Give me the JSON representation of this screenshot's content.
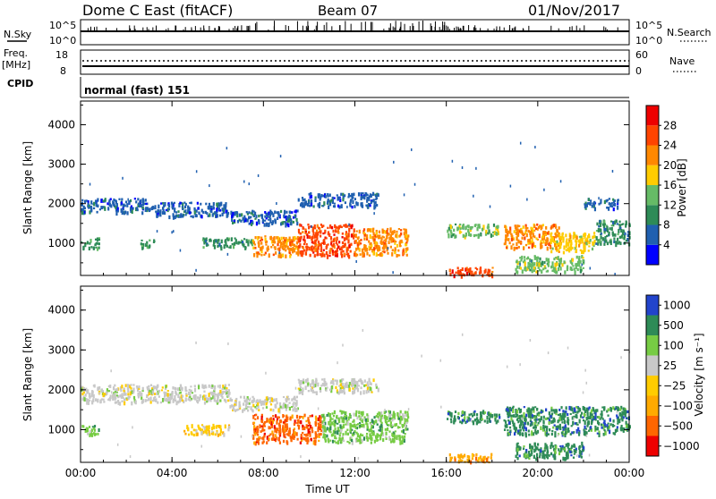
{
  "header": {
    "title": "Dome C East (fitACF)",
    "beam": "Beam 07",
    "date": "01/Nov/2017"
  },
  "top_panels": {
    "nsky_label": "N.Sky",
    "nsky_ticks": [
      "10^5",
      "10^0"
    ],
    "nsearch_label": "N.Search",
    "nsearch_ticks": [
      "10^5",
      "10^0"
    ],
    "freq_label": "Freq.",
    "freq_unit": "[MHz]",
    "freq_ticks": [
      "18",
      "8"
    ],
    "nave_label": "Nave",
    "nave_ticks": [
      "60",
      "0"
    ],
    "cpid_label": "CPID",
    "cpid_value": "normal (fast) 151"
  },
  "chart_data": [
    {
      "type": "heatmap",
      "name": "power",
      "xlabel": "",
      "ylabel": "Slant Range [km]",
      "x_ticks": [
        "00:00",
        "04:00",
        "08:00",
        "12:00",
        "16:00",
        "20:00",
        "00:00"
      ],
      "y_ticks": [
        "1000",
        "2000",
        "3000",
        "4000"
      ],
      "xlim": [
        0,
        24
      ],
      "ylim": [
        180,
        4600
      ],
      "colorbar": {
        "label": "Power [dB]",
        "ticks": [
          "4",
          "8",
          "12",
          "16",
          "20",
          "24",
          "28"
        ],
        "range": [
          0,
          32
        ],
        "colors": [
          "#0000ff",
          "#2060b0",
          "#2e8b57",
          "#66bb66",
          "#ffcc00",
          "#ff8800",
          "#ff4400",
          "#ee0000"
        ]
      },
      "regions": [
        {
          "x": [
            0.0,
            3.2
          ],
          "y": [
            1800,
            2150
          ],
          "value": 5
        },
        {
          "x": [
            3.2,
            6.5
          ],
          "y": [
            1700,
            2050
          ],
          "value": 5
        },
        {
          "x": [
            6.5,
            9.5
          ],
          "y": [
            1500,
            1850
          ],
          "value": 6
        },
        {
          "x": [
            9.5,
            13.0
          ],
          "y": [
            1950,
            2300
          ],
          "value": 5
        },
        {
          "x": [
            0.0,
            0.8
          ],
          "y": [
            900,
            1150
          ],
          "value": 9
        },
        {
          "x": [
            2.6,
            3.2
          ],
          "y": [
            900,
            1100
          ],
          "value": 8
        },
        {
          "x": [
            5.2,
            7.5
          ],
          "y": [
            900,
            1150
          ],
          "value": 10
        },
        {
          "x": [
            7.5,
            9.5
          ],
          "y": [
            700,
            1200
          ],
          "value": 20
        },
        {
          "x": [
            9.5,
            12.0
          ],
          "y": [
            700,
            1500
          ],
          "value": 24
        },
        {
          "x": [
            12.0,
            14.3
          ],
          "y": [
            700,
            1400
          ],
          "value": 22
        },
        {
          "x": [
            16.1,
            18.0
          ],
          "y": [
            200,
            420
          ],
          "value": 27
        },
        {
          "x": [
            16.0,
            18.3
          ],
          "y": [
            1200,
            1500
          ],
          "value": 12
        },
        {
          "x": [
            18.5,
            21.0
          ],
          "y": [
            900,
            1500
          ],
          "value": 22
        },
        {
          "x": [
            20.5,
            22.5
          ],
          "y": [
            800,
            1300
          ],
          "value": 18
        },
        {
          "x": [
            19.0,
            22.0
          ],
          "y": [
            300,
            700
          ],
          "value": 14
        },
        {
          "x": [
            22.5,
            24.0
          ],
          "y": [
            1000,
            1600
          ],
          "value": 8
        },
        {
          "x": [
            22.0,
            23.5
          ],
          "y": [
            1900,
            2150
          ],
          "value": 5
        }
      ]
    },
    {
      "type": "heatmap",
      "name": "velocity",
      "xlabel": "Time UT",
      "ylabel": "Slant Range [km]",
      "x_ticks": [
        "00:00",
        "04:00",
        "08:00",
        "12:00",
        "16:00",
        "20:00",
        "00:00"
      ],
      "y_ticks": [
        "1000",
        "2000",
        "3000",
        "4000"
      ],
      "xlim": [
        0,
        24
      ],
      "ylim": [
        180,
        4600
      ],
      "colorbar": {
        "label": "Velocity [m s⁻¹]",
        "ticks": [
          "1000",
          "500",
          "100",
          "25",
          "−25",
          "−100",
          "−500",
          "−1000"
        ],
        "colors": [
          "#2244cc",
          "#2e8b57",
          "#77cc44",
          "#c8c8c8",
          "#ffcc00",
          "#ffaa00",
          "#ff6600",
          "#ee0000"
        ]
      },
      "regions": [
        {
          "x": [
            0.0,
            6.5
          ],
          "y": [
            1700,
            2150
          ],
          "value": "25"
        },
        {
          "x": [
            6.5,
            9.5
          ],
          "y": [
            1500,
            1850
          ],
          "value": "25"
        },
        {
          "x": [
            9.5,
            13.0
          ],
          "y": [
            1950,
            2300
          ],
          "value": "25"
        },
        {
          "x": [
            0.0,
            0.8
          ],
          "y": [
            900,
            1150
          ],
          "value": "100"
        },
        {
          "x": [
            4.5,
            6.5
          ],
          "y": [
            900,
            1150
          ],
          "value": "-25"
        },
        {
          "x": [
            7.5,
            10.5
          ],
          "y": [
            700,
            1400
          ],
          "value": "-500"
        },
        {
          "x": [
            10.5,
            14.3
          ],
          "y": [
            700,
            1500
          ],
          "value": "100"
        },
        {
          "x": [
            16.0,
            18.3
          ],
          "y": [
            1200,
            1500
          ],
          "value": "500"
        },
        {
          "x": [
            18.5,
            24.0
          ],
          "y": [
            900,
            1600
          ],
          "value": "500"
        },
        {
          "x": [
            16.1,
            18.0
          ],
          "y": [
            200,
            420
          ],
          "value": "-100"
        },
        {
          "x": [
            19.0,
            22.0
          ],
          "y": [
            300,
            700
          ],
          "value": "500"
        }
      ]
    }
  ]
}
